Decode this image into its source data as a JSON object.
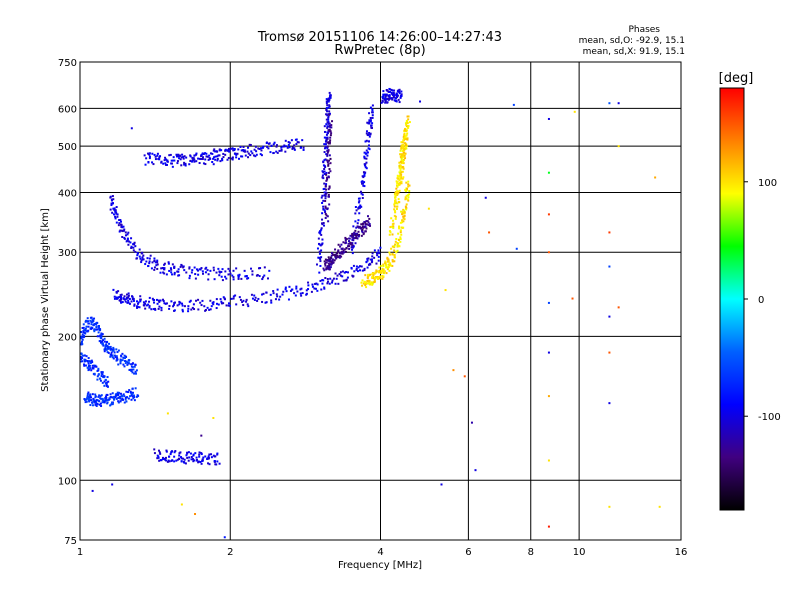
{
  "chart_data": {
    "type": "scatter",
    "title": "Tromsø 20151106 14:26:00–14:27:43",
    "subtitle": "RwPretec (8p)",
    "xlabel": "Frequency [MHz]",
    "ylabel": "Stationary phase Virtual Height [km]",
    "x_scale": "log",
    "y_scale": "log",
    "xlim": [
      1,
      16
    ],
    "ylim": [
      75,
      750
    ],
    "x_ticks": [
      1,
      2,
      4,
      6,
      8,
      10,
      16
    ],
    "y_ticks": [
      75,
      100,
      200,
      300,
      400,
      500,
      600,
      750
    ],
    "x_tick_labels": [
      "1",
      "2",
      "4",
      "6",
      "8",
      "10",
      "16"
    ],
    "y_tick_labels": [
      "75",
      "100",
      "200",
      "300",
      "400",
      "500",
      "600",
      "750"
    ],
    "grid": true,
    "phases_box": {
      "title": "Phases",
      "line_o": "mean, sd,O: -92.9, 15.1",
      "line_x": "mean, sd,X:  91.9, 15.1"
    },
    "colorbar": {
      "label": "[deg]",
      "range": [
        -180,
        180
      ],
      "ticks": [
        100,
        0,
        -100
      ],
      "tick_labels": [
        "100",
        "0",
        "-100"
      ],
      "colors": [
        "#ff0000",
        "#ff8000",
        "#ffff00",
        "#00ff00",
        "#00ffff",
        "#0060ff",
        "#0000ff",
        "#400080",
        "#000000"
      ]
    },
    "series": [
      {
        "comment_free": true,
        "phase": -100,
        "color": "#2a3fd6",
        "segments": [
          {
            "f": [
              1.17,
              1.22,
              1.28,
              1.35,
              1.45,
              1.6,
              1.8,
              2.0,
              2.3,
              2.6,
              2.9,
              3.2,
              3.5,
              3.8,
              4.0
            ],
            "h": [
              245,
              240,
              237,
              235,
              233,
              232,
              233,
              236,
              240,
              246,
              253,
              262,
              272,
              285,
              300
            ]
          },
          {
            "f": [
              1.15,
              1.18,
              1.22,
              1.28,
              1.35,
              1.45,
              1.55,
              1.7,
              1.9,
              2.1,
              2.4
            ],
            "h": [
              390,
              360,
              330,
              305,
              290,
              280,
              275,
              272,
              270,
              270,
              272
            ]
          },
          {
            "f": [
              3.0,
              3.05,
              3.08,
              3.1,
              3.12,
              3.14,
              3.16
            ],
            "h": [
              280,
              330,
              400,
              470,
              540,
              600,
              640
            ]
          },
          {
            "f": [
              3.5,
              3.6,
              3.7,
              3.75,
              3.8,
              3.85
            ],
            "h": [
              300,
              360,
              420,
              480,
              550,
              600
            ]
          },
          {
            "f": [
              1.35,
              1.45,
              1.55,
              1.65,
              1.75,
              1.85
            ],
            "h": [
              470,
              468,
              466,
              467,
              470,
              472
            ]
          },
          {
            "f": [
              1.85,
              1.95,
              2.05,
              2.2,
              2.4,
              2.6,
              2.8
            ],
            "h": [
              480,
              478,
              482,
              490,
              495,
              500,
              505
            ]
          },
          {
            "f": [
              1.42,
              1.5,
              1.6,
              1.7,
              1.8,
              1.9
            ],
            "h": [
              113,
              112,
              112,
              111,
              111,
              111
            ]
          },
          {
            "f": [
              4.05,
              4.1,
              4.2,
              4.3,
              4.4
            ],
            "h": [
              630,
              635,
              640,
              638,
              635
            ]
          }
        ]
      },
      {
        "phase": -130,
        "color": "#3b1e8e",
        "segments": [
          {
            "f": [
              3.1,
              3.15,
              3.2,
              3.3,
              3.4,
              3.5,
              3.6,
              3.7,
              3.8
            ],
            "h": [
              280,
              285,
              290,
              300,
              310,
              320,
              330,
              340,
              350
            ]
          },
          {
            "f": [
              3.12,
              3.14,
              3.16,
              3.18
            ],
            "h": [
              350,
              420,
              500,
              570
            ]
          }
        ]
      },
      {
        "phase": -70,
        "color": "#3c8ee6",
        "segments": [
          {
            "f": [
              1.0,
              1.02,
              1.05,
              1.08,
              1.1,
              1.13,
              1.16,
              1.2,
              1.25,
              1.3
            ],
            "h": [
              195,
              205,
              215,
              210,
              200,
              190,
              185,
              180,
              175,
              170
            ]
          },
          {
            "f": [
              1.03,
              1.05,
              1.08,
              1.12,
              1.16,
              1.2,
              1.25,
              1.3
            ],
            "h": [
              150,
              148,
              147,
              147,
              148,
              149,
              150,
              152
            ]
          },
          {
            "f": [
              1.0,
              1.03,
              1.06,
              1.1,
              1.14
            ],
            "h": [
              180,
              178,
              172,
              165,
              160
            ]
          }
        ]
      },
      {
        "phase": 100,
        "color": "#f0e000",
        "segments": [
          {
            "f": [
              3.7,
              3.8,
              3.9,
              4.0,
              4.1,
              4.2,
              4.3,
              4.4,
              4.5,
              4.55
            ],
            "h": [
              260,
              262,
              265,
              270,
              278,
              290,
              310,
              340,
              380,
              420
            ]
          },
          {
            "f": [
              4.2,
              4.3,
              4.4,
              4.45,
              4.5
            ],
            "h": [
              330,
              380,
              430,
              480,
              520
            ]
          },
          {
            "f": [
              4.3,
              4.35,
              4.4,
              4.45,
              4.5,
              4.55
            ],
            "h": [
              380,
              420,
              460,
              500,
              540,
              570
            ]
          }
        ]
      }
    ],
    "scatter_points": [
      {
        "f": 1.06,
        "h": 95,
        "phase": -100
      },
      {
        "f": 1.16,
        "h": 98,
        "phase": -100
      },
      {
        "f": 1.27,
        "h": 545,
        "phase": -100
      },
      {
        "f": 1.5,
        "h": 138,
        "phase": 100
      },
      {
        "f": 1.6,
        "h": 89,
        "phase": 100
      },
      {
        "f": 1.7,
        "h": 85,
        "phase": 130
      },
      {
        "f": 1.75,
        "h": 124,
        "phase": -130
      },
      {
        "f": 1.85,
        "h": 135,
        "phase": 100
      },
      {
        "f": 1.95,
        "h": 76,
        "phase": -80
      },
      {
        "f": 5.3,
        "h": 98,
        "phase": -100
      },
      {
        "f": 5.6,
        "h": 170,
        "phase": 130
      },
      {
        "f": 5.9,
        "h": 165,
        "phase": 150
      },
      {
        "f": 6.1,
        "h": 132,
        "phase": -120
      },
      {
        "f": 6.2,
        "h": 105,
        "phase": -100
      },
      {
        "f": 6.5,
        "h": 390,
        "phase": -100
      },
      {
        "f": 6.6,
        "h": 330,
        "phase": 150
      },
      {
        "f": 7.4,
        "h": 610,
        "phase": -60
      },
      {
        "f": 7.5,
        "h": 305,
        "phase": -60
      },
      {
        "f": 8.7,
        "h": 570,
        "phase": -100
      },
      {
        "f": 8.7,
        "h": 440,
        "phase": 40
      },
      {
        "f": 8.7,
        "h": 360,
        "phase": 160
      },
      {
        "f": 8.7,
        "h": 300,
        "phase": 150
      },
      {
        "f": 8.7,
        "h": 235,
        "phase": -60
      },
      {
        "f": 8.7,
        "h": 185,
        "phase": -100
      },
      {
        "f": 8.7,
        "h": 150,
        "phase": 120
      },
      {
        "f": 8.7,
        "h": 110,
        "phase": 100
      },
      {
        "f": 8.7,
        "h": 80,
        "phase": 170
      },
      {
        "f": 9.8,
        "h": 590,
        "phase": 100
      },
      {
        "f": 9.7,
        "h": 240,
        "phase": 150
      },
      {
        "f": 11.5,
        "h": 615,
        "phase": -50
      },
      {
        "f": 11.5,
        "h": 330,
        "phase": 160
      },
      {
        "f": 11.5,
        "h": 280,
        "phase": -60
      },
      {
        "f": 11.5,
        "h": 220,
        "phase": -100
      },
      {
        "f": 11.5,
        "h": 185,
        "phase": 150
      },
      {
        "f": 11.5,
        "h": 145,
        "phase": -100
      },
      {
        "f": 11.5,
        "h": 88,
        "phase": 100
      },
      {
        "f": 12.0,
        "h": 615,
        "phase": -100
      },
      {
        "f": 12.0,
        "h": 500,
        "phase": 100
      },
      {
        "f": 12.0,
        "h": 230,
        "phase": 150
      },
      {
        "f": 14.2,
        "h": 430,
        "phase": 120
      },
      {
        "f": 14.5,
        "h": 88,
        "phase": 100
      },
      {
        "f": 4.8,
        "h": 620,
        "phase": -100
      },
      {
        "f": 5.0,
        "h": 370,
        "phase": 100
      },
      {
        "f": 5.4,
        "h": 250,
        "phase": 100
      }
    ]
  }
}
